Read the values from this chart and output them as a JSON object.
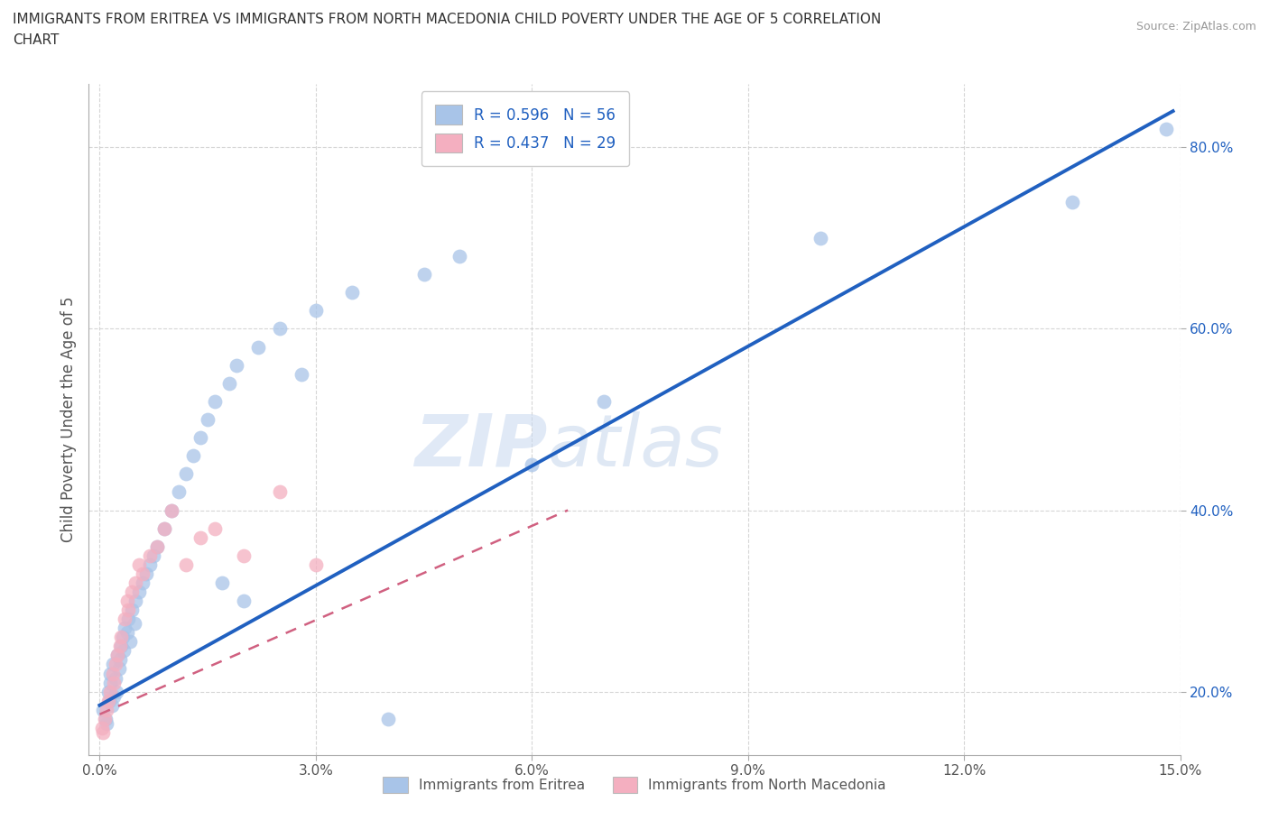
{
  "title_line1": "IMMIGRANTS FROM ERITREA VS IMMIGRANTS FROM NORTH MACEDONIA CHILD POVERTY UNDER THE AGE OF 5 CORRELATION",
  "title_line2": "CHART",
  "source_text": "Source: ZipAtlas.com",
  "ylabel": "Child Poverty Under the Age of 5",
  "xlim": [
    -0.15,
    15.0
  ],
  "ylim": [
    13.0,
    87.0
  ],
  "xticks": [
    0.0,
    3.0,
    6.0,
    9.0,
    12.0,
    15.0
  ],
  "ytick_positions": [
    20.0,
    40.0,
    60.0,
    80.0
  ],
  "ytick_labels": [
    "20.0%",
    "40.0%",
    "60.0%",
    "80.0%"
  ],
  "xtick_labels": [
    "0.0%",
    "3.0%",
    "6.0%",
    "9.0%",
    "12.0%",
    "15.0%"
  ],
  "color_eritrea": "#a8c4e8",
  "color_macedonia": "#f4afc0",
  "trend_color_eritrea": "#2060c0",
  "trend_color_macedonia": "#d06080",
  "watermark_zip": "ZIP",
  "watermark_atlas": "atlas",
  "legend_r_eritrea": "R = 0.596",
  "legend_n_eritrea": "N = 56",
  "legend_r_macedonia": "R = 0.437",
  "legend_n_macedonia": "N = 29",
  "eritrea_x": [
    0.05,
    0.08,
    0.1,
    0.12,
    0.13,
    0.15,
    0.15,
    0.17,
    0.18,
    0.2,
    0.22,
    0.23,
    0.25,
    0.27,
    0.28,
    0.3,
    0.32,
    0.33,
    0.35,
    0.38,
    0.4,
    0.42,
    0.45,
    0.48,
    0.5,
    0.55,
    0.6,
    0.65,
    0.7,
    0.75,
    0.8,
    0.9,
    1.0,
    1.1,
    1.2,
    1.3,
    1.4,
    1.5,
    1.6,
    1.7,
    1.8,
    1.9,
    2.0,
    2.2,
    2.5,
    2.8,
    3.0,
    3.5,
    4.0,
    4.5,
    5.0,
    6.0,
    7.0,
    10.0,
    13.5,
    14.8
  ],
  "eritrea_y": [
    18.0,
    17.0,
    16.5,
    20.0,
    19.0,
    21.0,
    22.0,
    18.5,
    23.0,
    19.5,
    21.5,
    20.0,
    24.0,
    22.5,
    23.5,
    25.0,
    26.0,
    24.5,
    27.0,
    26.5,
    28.0,
    25.5,
    29.0,
    27.5,
    30.0,
    31.0,
    32.0,
    33.0,
    34.0,
    35.0,
    36.0,
    38.0,
    40.0,
    42.0,
    44.0,
    46.0,
    48.0,
    50.0,
    52.0,
    32.0,
    54.0,
    56.0,
    30.0,
    58.0,
    60.0,
    55.0,
    62.0,
    64.0,
    17.0,
    66.0,
    68.0,
    45.0,
    52.0,
    70.0,
    74.0,
    82.0
  ],
  "macedonia_x": [
    0.03,
    0.05,
    0.07,
    0.1,
    0.12,
    0.15,
    0.18,
    0.2,
    0.22,
    0.25,
    0.28,
    0.3,
    0.35,
    0.38,
    0.4,
    0.45,
    0.5,
    0.55,
    0.6,
    0.7,
    0.8,
    0.9,
    1.0,
    1.2,
    1.4,
    1.6,
    2.0,
    2.5,
    3.0
  ],
  "macedonia_y": [
    16.0,
    15.5,
    17.0,
    18.0,
    19.0,
    20.0,
    22.0,
    21.0,
    23.0,
    24.0,
    25.0,
    26.0,
    28.0,
    30.0,
    29.0,
    31.0,
    32.0,
    34.0,
    33.0,
    35.0,
    36.0,
    38.0,
    40.0,
    34.0,
    37.0,
    38.0,
    35.0,
    42.0,
    34.0
  ],
  "trend_eritrea_x0": 0.0,
  "trend_eritrea_y0": 18.5,
  "trend_eritrea_x1": 14.9,
  "trend_eritrea_y1": 84.0,
  "trend_macedonia_x0": 0.0,
  "trend_macedonia_y0": 17.5,
  "trend_macedonia_x1": 6.5,
  "trend_macedonia_y1": 40.0
}
